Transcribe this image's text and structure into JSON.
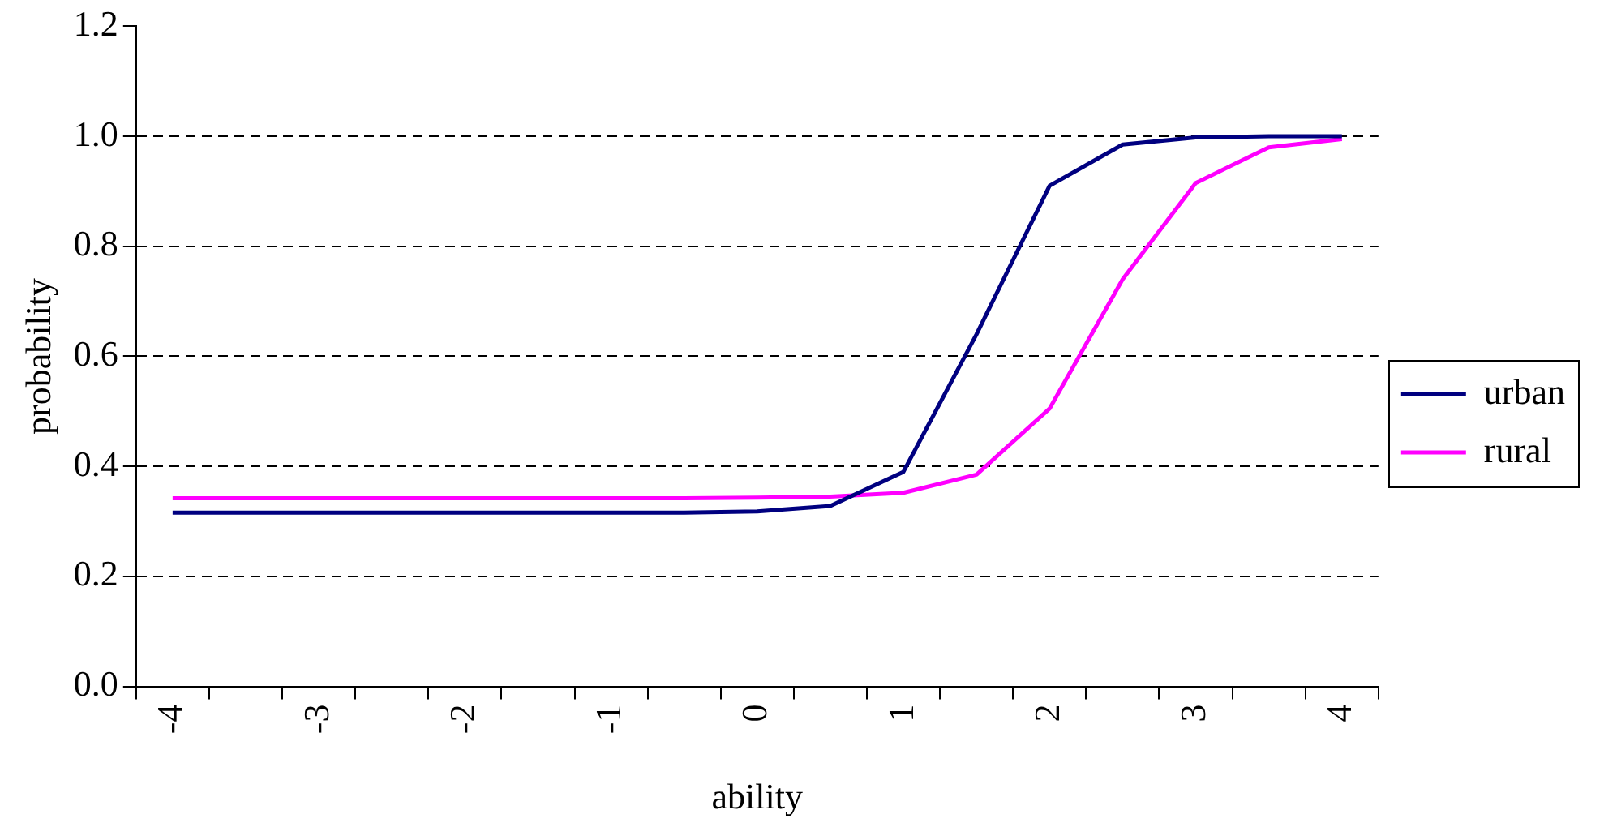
{
  "chart_data": {
    "type": "line",
    "xlabel": "ability",
    "ylabel": "probability",
    "categories": [
      "-4",
      null,
      "-3",
      null,
      "-2",
      null,
      "-1",
      null,
      "0",
      null,
      "1",
      null,
      "2",
      null,
      "3",
      null,
      "4"
    ],
    "series": [
      {
        "name": "urban",
        "color": "#000080",
        "values": [
          0.316,
          0.316,
          0.316,
          0.316,
          0.316,
          0.316,
          0.316,
          0.316,
          0.318,
          0.328,
          0.39,
          0.64,
          0.91,
          0.985,
          0.998,
          1.0,
          1.0
        ]
      },
      {
        "name": "rural",
        "color": "#ff00ff",
        "values": [
          0.342,
          0.342,
          0.342,
          0.342,
          0.342,
          0.342,
          0.342,
          0.342,
          0.343,
          0.345,
          0.352,
          0.385,
          0.505,
          0.74,
          0.915,
          0.98,
          0.995
        ]
      }
    ],
    "ylim": [
      0,
      1.2
    ],
    "yticks": [
      {
        "value": 0,
        "label": "0.0"
      },
      {
        "value": 0.2,
        "label": "0.2"
      },
      {
        "value": 0.4,
        "label": "0.4"
      },
      {
        "value": 0.6,
        "label": "0.6"
      },
      {
        "value": 0.8,
        "label": "0.8"
      },
      {
        "value": 1,
        "label": "1.0"
      },
      {
        "value": 1.2,
        "label": "1.2"
      }
    ],
    "grid": "y",
    "legend": "right",
    "marker": "none",
    "line_style": "solid"
  }
}
